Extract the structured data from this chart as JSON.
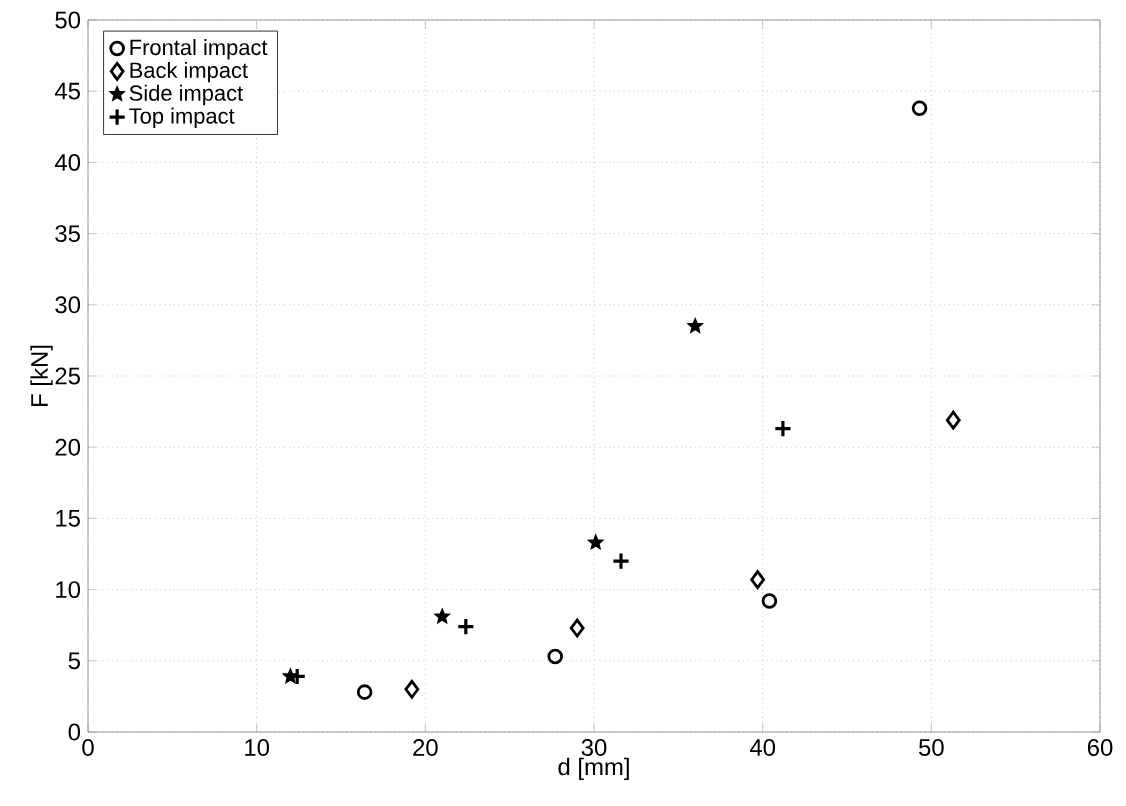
{
  "chart_data": {
    "type": "scatter",
    "xlabel": "d [mm]",
    "ylabel": "F [kN]",
    "xlim": [
      0,
      60
    ],
    "xticks": [
      0,
      10,
      20,
      30,
      40,
      50,
      60
    ],
    "ylim": [
      0,
      50
    ],
    "yticks": [
      0,
      5,
      10,
      15,
      20,
      25,
      30,
      35,
      40,
      45,
      50
    ],
    "grid": true,
    "legend": "top left",
    "series": [
      {
        "name": "Frontal impact",
        "color": "#000000",
        "marker": "circle",
        "x": [
          16.4,
          27.7,
          40.4,
          49.3
        ],
        "values": [
          2.8,
          5.3,
          9.2,
          43.8
        ]
      },
      {
        "name": "Back impact",
        "color": "#000000",
        "marker": "diamond",
        "x": [
          19.2,
          29.0,
          39.7,
          51.3
        ],
        "values": [
          3.0,
          7.3,
          10.7,
          21.9
        ]
      },
      {
        "name": "Side impact",
        "color": "#000000",
        "marker": "star",
        "x": [
          12.0,
          21.0,
          30.1,
          36.0
        ],
        "values": [
          3.9,
          8.1,
          13.3,
          28.5
        ]
      },
      {
        "name": "Top impact",
        "color": "#000000",
        "marker": "cross",
        "x": [
          12.4,
          22.4,
          31.6,
          41.2
        ],
        "values": [
          3.9,
          7.4,
          12.0,
          21.3
        ]
      }
    ]
  }
}
